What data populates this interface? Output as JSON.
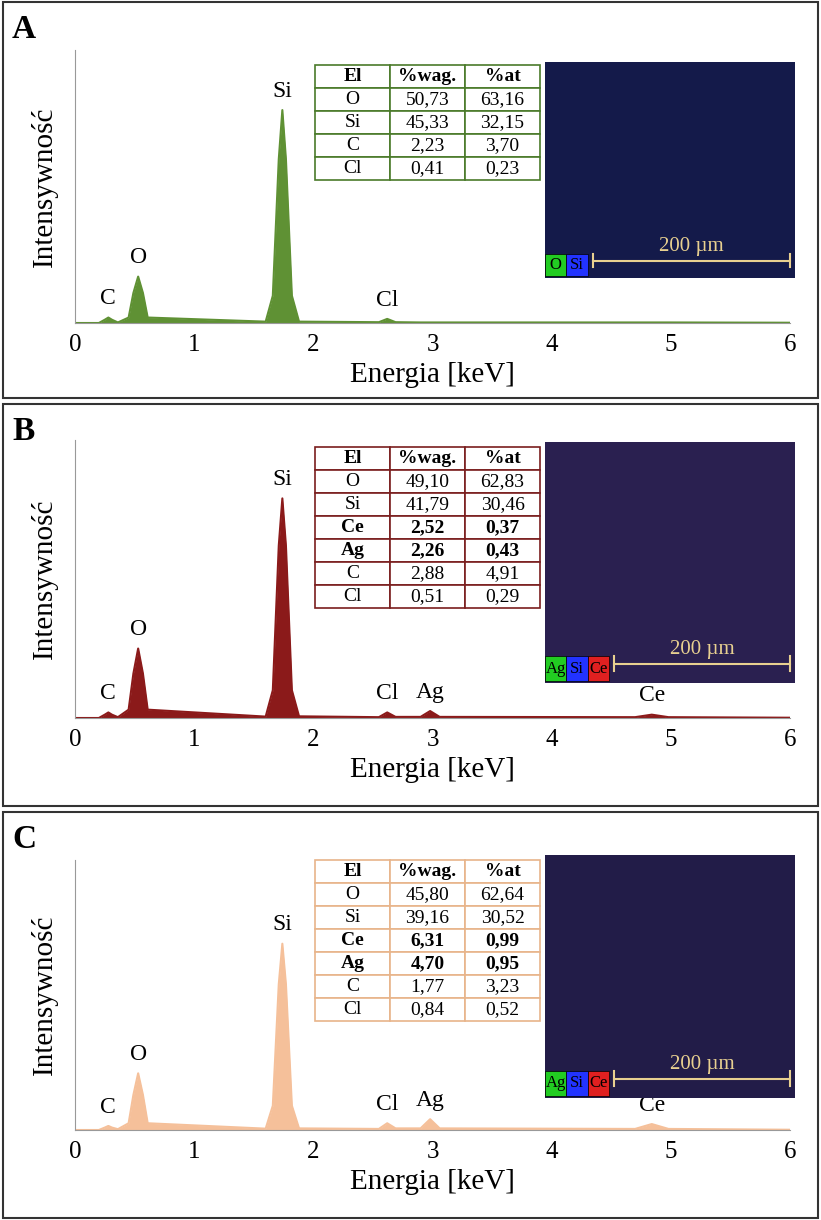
{
  "chart_data": [
    {
      "type": "area",
      "title": "A",
      "x_label": "Energia [keV]",
      "y_label": "Intensywność",
      "color": "#5f9134",
      "xlim": [
        0,
        6
      ],
      "ylim": [
        0,
        100
      ],
      "xticks": [
        0,
        1,
        2,
        3,
        4,
        5,
        6
      ],
      "tick_labels": "x",
      "x": [
        0,
        0.2,
        0.25,
        0.28,
        0.31,
        0.36,
        0.45,
        0.49,
        0.53,
        0.57,
        0.61,
        1.6,
        1.66,
        1.71,
        1.74,
        1.77,
        1.82,
        1.88,
        2.55,
        2.62,
        2.69,
        2.9,
        2.98,
        3.06,
        4.7,
        4.84,
        4.98,
        6
      ],
      "values": [
        0,
        0,
        1.2,
        2,
        1.2,
        0.2,
        2,
        11,
        17,
        11,
        2,
        0.5,
        10,
        60,
        78,
        60,
        10,
        0.5,
        0.3,
        1.5,
        0.3,
        0.2,
        0.2,
        0.2,
        0.2,
        0.2,
        0.2,
        0.1
      ],
      "annotations": [
        {
          "text": "C",
          "x": 0.28
        },
        {
          "text": "O",
          "x": 0.53
        },
        {
          "text": "Si",
          "x": 1.74
        },
        {
          "text": "Cl",
          "x": 2.62
        }
      ],
      "table": {
        "columns": [
          "El",
          "%wag.",
          "%at"
        ],
        "rows": [
          [
            "O",
            "50,73",
            "63,16"
          ],
          [
            "Si",
            "45,33",
            "32,15"
          ],
          [
            "C",
            "2,23",
            "3,70"
          ],
          [
            "Cl",
            "0,41",
            "0,23"
          ]
        ],
        "bold": [],
        "color": "#4a7a2a"
      },
      "map": {
        "elements": [
          "O",
          "Si"
        ],
        "colors": [
          "#22cc22",
          "#2233ff"
        ],
        "scale_bar": "200 µm"
      }
    },
    {
      "type": "area",
      "title": "B",
      "x_label": "Energia [keV]",
      "y_label": "Intensywność",
      "color": "#8b1a1a",
      "xlim": [
        0,
        6
      ],
      "ylim": [
        0,
        100
      ],
      "xticks": [
        0,
        1,
        2,
        3,
        4,
        5,
        6
      ],
      "tick_labels": "x",
      "x": [
        0,
        0.2,
        0.25,
        0.28,
        0.31,
        0.36,
        0.45,
        0.49,
        0.53,
        0.57,
        0.61,
        1.6,
        1.66,
        1.71,
        1.74,
        1.77,
        1.82,
        1.88,
        2.55,
        2.62,
        2.69,
        2.9,
        2.98,
        3.06,
        4.7,
        4.84,
        4.98,
        6
      ],
      "values": [
        0,
        0,
        1.2,
        2,
        1.2,
        0.3,
        3,
        16,
        25,
        16,
        3,
        0.5,
        10,
        62,
        79,
        62,
        10,
        0.6,
        0.3,
        2,
        0.4,
        0.4,
        2.5,
        0.4,
        0.3,
        1.2,
        0.3,
        0.1
      ],
      "annotations": [
        {
          "text": "C",
          "x": 0.28
        },
        {
          "text": "O",
          "x": 0.53
        },
        {
          "text": "Si",
          "x": 1.74
        },
        {
          "text": "Cl",
          "x": 2.62
        },
        {
          "text": "Ag",
          "x": 2.98
        },
        {
          "text": "Ce",
          "x": 4.84
        }
      ],
      "table": {
        "columns": [
          "El",
          "%wag.",
          "%at"
        ],
        "rows": [
          [
            "O",
            "49,10",
            "62,83"
          ],
          [
            "Si",
            "41,79",
            "30,46"
          ],
          [
            "Ce",
            "2,52",
            "0,37"
          ],
          [
            "Ag",
            "2,26",
            "0,43"
          ],
          [
            "C",
            "2,88",
            "4,91"
          ],
          [
            "Cl",
            "0,51",
            "0,29"
          ]
        ],
        "bold": [
          "Ce",
          "Ag"
        ],
        "color": "#7a1e1e"
      },
      "map": {
        "elements": [
          "Ag",
          "Si",
          "Ce"
        ],
        "colors": [
          "#22cc22",
          "#2233ff",
          "#e02020"
        ],
        "scale_bar": "200 µm"
      }
    },
    {
      "type": "area",
      "title": "C",
      "x_label": "Energia [keV]",
      "y_label": "Intensywność",
      "color": "#f5c09a",
      "xlim": [
        0,
        6
      ],
      "ylim": [
        0,
        100
      ],
      "xticks": [
        0,
        1,
        2,
        3,
        4,
        5,
        6
      ],
      "tick_labels": "x",
      "x": [
        0,
        0.2,
        0.25,
        0.28,
        0.31,
        0.36,
        0.45,
        0.49,
        0.53,
        0.57,
        0.61,
        1.6,
        1.66,
        1.71,
        1.74,
        1.77,
        1.82,
        1.88,
        2.55,
        2.62,
        2.69,
        2.9,
        2.98,
        3.06,
        4.7,
        4.84,
        4.98,
        6
      ],
      "values": [
        0,
        0,
        0.9,
        1.5,
        0.9,
        0.3,
        2.5,
        13,
        21,
        13,
        2.5,
        0.5,
        9,
        54,
        69,
        54,
        9,
        0.6,
        0.4,
        2.5,
        0.6,
        0.6,
        4,
        0.6,
        0.4,
        2.2,
        0.4,
        0.1
      ],
      "annotations": [
        {
          "text": "C",
          "x": 0.28
        },
        {
          "text": "O",
          "x": 0.53
        },
        {
          "text": "Si",
          "x": 1.74
        },
        {
          "text": "Cl",
          "x": 2.62
        },
        {
          "text": "Ag",
          "x": 2.98
        },
        {
          "text": "Ce",
          "x": 4.84
        }
      ],
      "table": {
        "columns": [
          "El",
          "%wag.",
          "%at"
        ],
        "rows": [
          [
            "O",
            "45,80",
            "62,64"
          ],
          [
            "Si",
            "39,16",
            "30,52"
          ],
          [
            "Ce",
            "6,31",
            "0,99"
          ],
          [
            "Ag",
            "4,70",
            "0,95"
          ],
          [
            "C",
            "1,77",
            "3,23"
          ],
          [
            "Cl",
            "0,84",
            "0,52"
          ]
        ],
        "bold": [
          "Ce",
          "Ag"
        ],
        "color": "#e8b48a"
      },
      "map": {
        "elements": [
          "Ag",
          "Si",
          "Ce"
        ],
        "colors": [
          "#22cc22",
          "#2233ff",
          "#e02020"
        ],
        "scale_bar": "200 µm"
      }
    }
  ]
}
